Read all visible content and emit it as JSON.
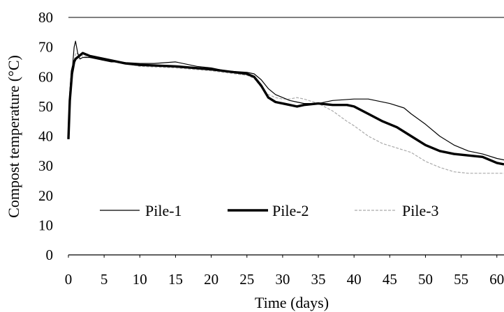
{
  "chart_data": {
    "type": "line",
    "title": "",
    "xlabel": "Time (days)",
    "ylabel": "Compost temperature (°C)",
    "xlim": [
      0,
      61
    ],
    "ylim": [
      0,
      80
    ],
    "x_ticks": [
      "0",
      "5",
      "10",
      "15",
      "20",
      "25",
      "30",
      "35",
      "40",
      "45",
      "50",
      "55",
      "60"
    ],
    "y_ticks": [
      "0",
      "10",
      "20",
      "30",
      "40",
      "50",
      "60",
      "70",
      "80"
    ],
    "grid": "top line at 80 only",
    "legend_position": "bottom-inside",
    "series": [
      {
        "name": "Pile-1",
        "style": "thin solid black",
        "color": "#000000",
        "points": [
          [
            0.0,
            40
          ],
          [
            0.2,
            55
          ],
          [
            0.4,
            62
          ],
          [
            0.6,
            64
          ],
          [
            0.8,
            70
          ],
          [
            1.0,
            72
          ],
          [
            1.3,
            68
          ],
          [
            1.6,
            66
          ],
          [
            2,
            66.5
          ],
          [
            3,
            66.5
          ],
          [
            4,
            66
          ],
          [
            5,
            65.5
          ],
          [
            6,
            65
          ],
          [
            7,
            65
          ],
          [
            8,
            64.8
          ],
          [
            10,
            64.5
          ],
          [
            12,
            64.5
          ],
          [
            15,
            65
          ],
          [
            18,
            63.5
          ],
          [
            20,
            63
          ],
          [
            22,
            62
          ],
          [
            25,
            61.5
          ],
          [
            26,
            61
          ],
          [
            27,
            59
          ],
          [
            28,
            56
          ],
          [
            29,
            54
          ],
          [
            30,
            53
          ],
          [
            31,
            52
          ],
          [
            32,
            51.5
          ],
          [
            33,
            51
          ],
          [
            35,
            51
          ],
          [
            37,
            52
          ],
          [
            40,
            52.5
          ],
          [
            42,
            52.5
          ],
          [
            45,
            51
          ],
          [
            47,
            49.5
          ],
          [
            48,
            47.5
          ],
          [
            50,
            44
          ],
          [
            52,
            40
          ],
          [
            54,
            37
          ],
          [
            56,
            35
          ],
          [
            58,
            34
          ],
          [
            60,
            32.5
          ],
          [
            61,
            32
          ]
        ]
      },
      {
        "name": "Pile-2",
        "style": "thick solid black",
        "color": "#000000",
        "points": [
          [
            0.0,
            39
          ],
          [
            0.2,
            52
          ],
          [
            0.5,
            61
          ],
          [
            0.8,
            65
          ],
          [
            1.0,
            66
          ],
          [
            1.5,
            67
          ],
          [
            2,
            68
          ],
          [
            3,
            67
          ],
          [
            5,
            66
          ],
          [
            8,
            64.5
          ],
          [
            10,
            64
          ],
          [
            15,
            63.5
          ],
          [
            20,
            62.5
          ],
          [
            25,
            61
          ],
          [
            26,
            60
          ],
          [
            27,
            57
          ],
          [
            28,
            53
          ],
          [
            29,
            51.5
          ],
          [
            30,
            51
          ],
          [
            31,
            50.5
          ],
          [
            32,
            50
          ],
          [
            33,
            50.5
          ],
          [
            35,
            51
          ],
          [
            37,
            50.5
          ],
          [
            39,
            50.5
          ],
          [
            40,
            50
          ],
          [
            42,
            47.5
          ],
          [
            44,
            45
          ],
          [
            46,
            43
          ],
          [
            48,
            40
          ],
          [
            50,
            37
          ],
          [
            52,
            35
          ],
          [
            54,
            34
          ],
          [
            56,
            33.5
          ],
          [
            58,
            33
          ],
          [
            60,
            31
          ],
          [
            61,
            30.5
          ]
        ]
      },
      {
        "name": "Pile-3",
        "style": "thin dashed grey",
        "color": "#aaaaaa",
        "points": [
          [
            0.0,
            39
          ],
          [
            0.3,
            56
          ],
          [
            0.5,
            63
          ],
          [
            0.8,
            65
          ],
          [
            1.0,
            68
          ],
          [
            1.5,
            67.5
          ],
          [
            2,
            67
          ],
          [
            3,
            66.5
          ],
          [
            5,
            65.5
          ],
          [
            8,
            64.5
          ],
          [
            10,
            63.5
          ],
          [
            15,
            63
          ],
          [
            20,
            62
          ],
          [
            25,
            60.5
          ],
          [
            26,
            59.5
          ],
          [
            27,
            56.5
          ],
          [
            28,
            54
          ],
          [
            29,
            53
          ],
          [
            30,
            52.5
          ],
          [
            31,
            52.5
          ],
          [
            32,
            53
          ],
          [
            33,
            52.5
          ],
          [
            35,
            51
          ],
          [
            37,
            48.5
          ],
          [
            39,
            45
          ],
          [
            40,
            43.5
          ],
          [
            42,
            40
          ],
          [
            44,
            37.5
          ],
          [
            46,
            36
          ],
          [
            48,
            34.5
          ],
          [
            50,
            31.5
          ],
          [
            52,
            29.5
          ],
          [
            54,
            28
          ],
          [
            56,
            27.5
          ],
          [
            58,
            27.5
          ],
          [
            60,
            27.5
          ],
          [
            61,
            27.5
          ]
        ]
      }
    ]
  }
}
